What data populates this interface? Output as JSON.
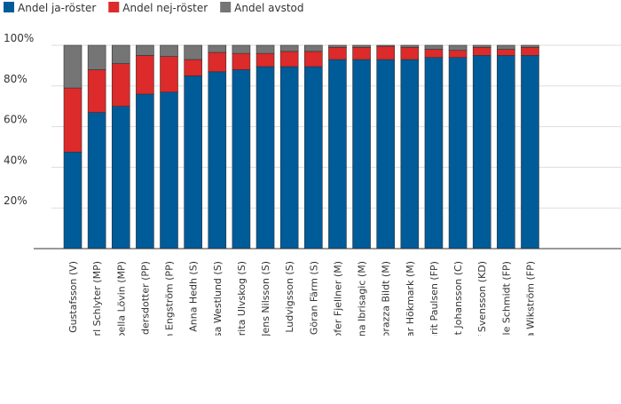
{
  "chart_data": {
    "type": "bar",
    "stacked": true,
    "title": "",
    "xlabel": "",
    "ylabel": "",
    "ylim": [
      0,
      100
    ],
    "y_ticks": [
      "20%",
      "40%",
      "60%",
      "80%",
      "100%"
    ],
    "legend_position": "top-left",
    "categories": [
      "Mikael Gustafsson (V)",
      "Carl Schlyter (MP)",
      "Isabella Lövin (MP)",
      "Amelia Andersdotter (PP)",
      "Christian Engström (PP)",
      "Anna Hedh (S)",
      "Åsa Westlund (S)",
      "Marita Ulvskog (S)",
      "Jens Nilsson (S)",
      "Olle Ludvigsson (S)",
      "Göran Färm (S)",
      "Christofer Fjellner (M)",
      "Anna Ibrisagic (M)",
      "Anna Maria Corazza Bildt (M)",
      "Gunnar Hökmark (M)",
      "Marit Paulsen (FP)",
      "Kent Johansson (C)",
      "Alf Svensson (KD)",
      "Olle Schmidt (FP)",
      "Cecilia Wikström (FP)"
    ],
    "series": [
      {
        "name": "Andel ja-röster",
        "color": "#005b99",
        "values": [
          47.5,
          67,
          70,
          76,
          77,
          85,
          87,
          88,
          89.5,
          89.5,
          89.5,
          93,
          93,
          93,
          93,
          94,
          94,
          95,
          95,
          95
        ]
      },
      {
        "name": "Andel nej-röster",
        "color": "#dd2a2a",
        "values": [
          31.5,
          21,
          21,
          19,
          17.5,
          8,
          9.5,
          8,
          6.5,
          7.5,
          7.5,
          6,
          6,
          6.5,
          6,
          4,
          3.5,
          4,
          3,
          4
        ]
      },
      {
        "name": "Andel avstod",
        "color": "#757575",
        "values": [
          21,
          12,
          9,
          5,
          5.5,
          7,
          3.5,
          4,
          4,
          3,
          3,
          1,
          1,
          0.5,
          1,
          2,
          2.5,
          1,
          2,
          1
        ]
      }
    ]
  }
}
